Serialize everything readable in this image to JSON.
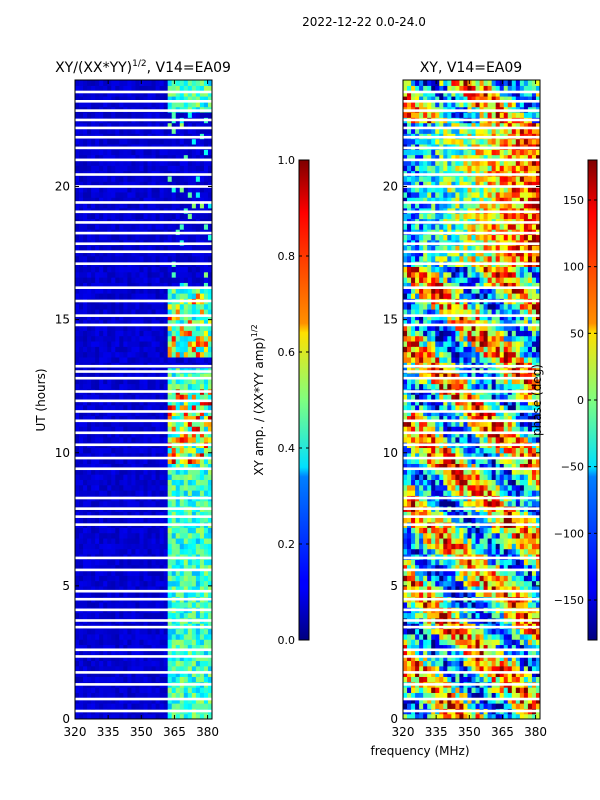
{
  "suptitle": "2022-12-22 0.0-24.0",
  "left_panel": {
    "title_main": "XY/(XX*YY)",
    "title_exp": "1/2",
    "title_tail": ", V14=EA09",
    "ylabel": "UT (hours)"
  },
  "right_panel": {
    "title": "XY, V14=EA09"
  },
  "xlabel": "frequency (MHz)",
  "cbar_left": {
    "label_main": "XY amp. / (XX*YY amp)",
    "label_exp": "1/2"
  },
  "cbar_right": {
    "label": "phase (deg)"
  },
  "colors": {
    "low": "#00007f",
    "mid_low": "#0080ff",
    "mid": "#7fff7f",
    "mid_high": "#ff8000",
    "high": "#7f0000",
    "gap": "#ffffff"
  },
  "chart_data": [
    {
      "type": "heatmap",
      "name": "normalized-amplitude",
      "xlim": [
        320,
        382
      ],
      "ylim": [
        0,
        24
      ],
      "xticks": [
        320,
        335,
        350,
        365,
        380
      ],
      "yticks": [
        0,
        5,
        10,
        15,
        20
      ],
      "colorbar_range": [
        0.0,
        1.0
      ],
      "colorbar_ticks": [
        "0.0",
        "0.2",
        "0.4",
        "0.6",
        "0.8",
        "1.0"
      ],
      "gaps_hours": [
        0.3,
        0.75,
        1.3,
        1.75,
        2.35,
        2.6,
        3.45,
        3.7,
        4.1,
        4.5,
        4.8,
        5.6,
        6.05,
        7.3,
        7.6,
        7.9,
        8.3,
        9.4,
        9.8,
        10.3,
        10.75,
        11.2,
        11.55,
        11.95,
        12.3,
        12.8,
        13.05,
        13.25,
        14.8,
        15.15,
        15.7,
        16.2,
        17.1,
        17.55,
        17.85,
        18.25,
        18.65,
        19.05,
        19.4,
        20.0,
        20.45,
        21.0,
        21.45,
        21.85,
        22.2,
        22.5,
        22.85,
        23.2,
        23.55
      ]
    },
    {
      "type": "heatmap",
      "name": "xy-phase",
      "xlim": [
        320,
        382
      ],
      "ylim": [
        0,
        24
      ],
      "xticks": [
        320,
        335,
        350,
        365,
        380
      ],
      "yticks": [
        0,
        5,
        10,
        15,
        20
      ],
      "colorbar_range": [
        -180,
        180
      ],
      "colorbar_ticks": [
        "−150",
        "−100",
        "−50",
        "0",
        "50",
        "100",
        "150"
      ],
      "gaps_hours": [
        0.3,
        0.75,
        1.3,
        1.75,
        2.35,
        2.6,
        3.45,
        3.7,
        4.1,
        4.5,
        4.8,
        5.6,
        6.05,
        7.3,
        7.6,
        7.9,
        8.3,
        9.4,
        9.8,
        10.3,
        10.75,
        11.2,
        11.55,
        11.95,
        12.3,
        12.8,
        13.05,
        13.25,
        14.8,
        15.15,
        15.7,
        16.2,
        17.1,
        17.55,
        17.85,
        18.25,
        18.65,
        19.05,
        19.4,
        20.0,
        20.45,
        21.0,
        21.45,
        21.85,
        22.2,
        22.5,
        22.85,
        23.2,
        23.55
      ]
    }
  ]
}
